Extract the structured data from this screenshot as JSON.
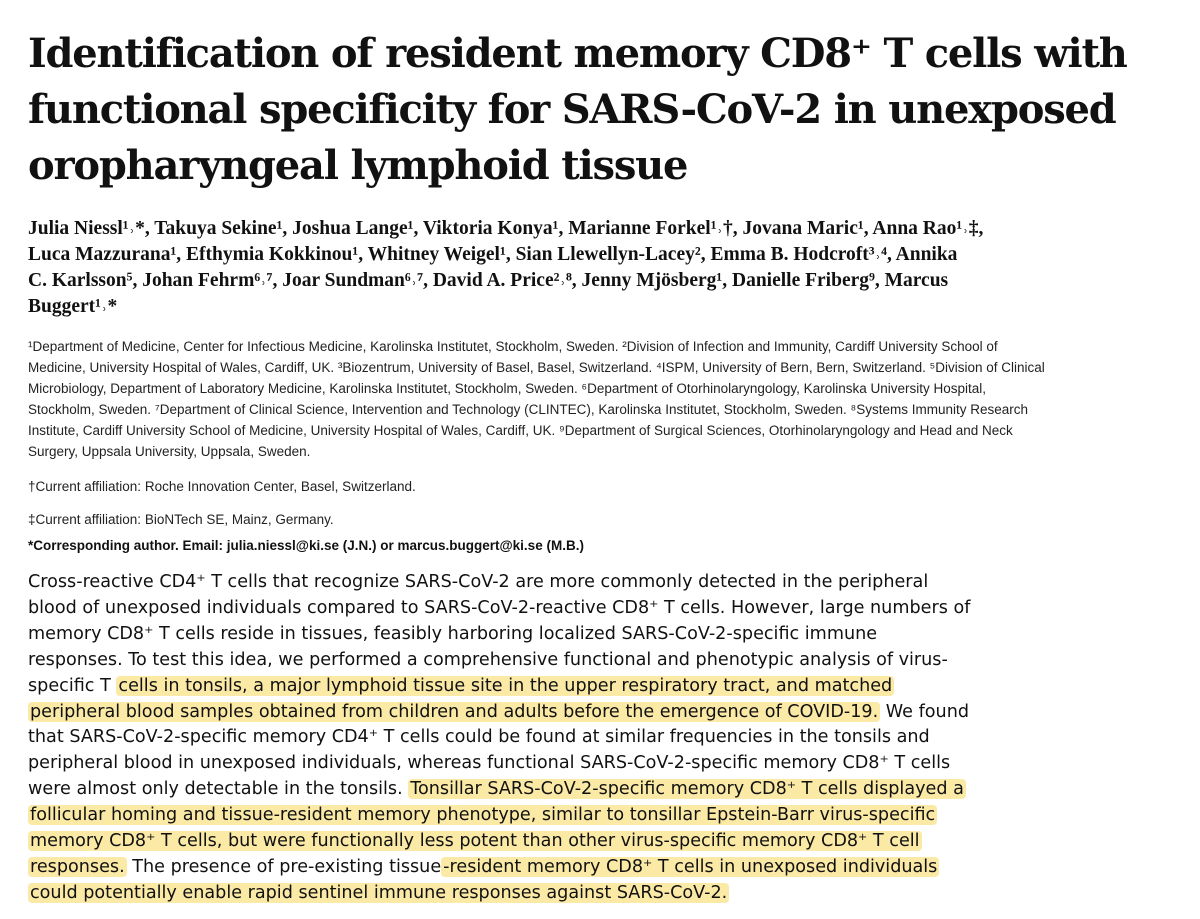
{
  "title": {
    "lines": [
      "Identification of resident memory CD8⁺ T cells with",
      "functional specificity for SARS-CoV-2 in unexposed",
      "oropharyngeal lymphoid tissue"
    ]
  },
  "authors": {
    "lines": [
      "Julia Niessl¹˒*, Takuya Sekine¹, Joshua Lange¹, Viktoria Konya¹, Marianne Forkel¹˒†, Jovana Maric¹, Anna Rao¹˒‡,",
      "Luca Mazzurana¹, Efthymia Kokkinou¹, Whitney Weigel¹, Sian Llewellyn-Lacey², Emma B. Hodcroft³˒⁴, Annika",
      "C. Karlsson⁵, Johan Fehrm⁶˒⁷, Joar Sundman⁶˒⁷, David A. Price²˒⁸, Jenny Mjösberg¹, Danielle Friberg⁹, Marcus",
      "Buggert¹˒*"
    ]
  },
  "affiliations": {
    "lines": [
      "¹Department of Medicine, Center for Infectious Medicine, Karolinska Institutet, Stockholm, Sweden. ²Division of Infection and Immunity, Cardiff University School of",
      "Medicine, University Hospital of Wales, Cardiff, UK. ³Biozentrum, University of Basel, Basel, Switzerland. ⁴ISPM, University of Bern, Bern, Switzerland. ⁵Division of Clinical",
      "Microbiology, Department of Laboratory Medicine, Karolinska Institutet, Stockholm, Sweden. ⁶Department of Otorhinolaryngology, Karolinska University Hospital,",
      "Stockholm, Sweden. ⁷Department of Clinical Science, Intervention and Technology (CLINTEC), Karolinska Institutet, Stockholm, Sweden. ⁸Systems Immunity Research",
      "Institute, Cardiff University School of Medicine, University Hospital of Wales, Cardiff, UK. ⁹Department of Surgical Sciences, Otorhinolaryngology and Head and Neck",
      "Surgery, Uppsala University, Uppsala, Sweden."
    ]
  },
  "notes": {
    "dagger": "†Current affiliation: Roche Innovation Center, Basel, Switzerland.",
    "double_dagger": "‡Current affiliation: BioNTech SE, Mainz, Germany.",
    "corresponding": "*Corresponding author. Email: julia.niessl@ki.se (J.N.) or marcus.buggert@ki.se (M.B.)"
  },
  "abstract": {
    "highlight_color": "#fbe9a6",
    "lines": [
      [
        {
          "t": "Cross-reactive CD4⁺ T cells that recognize SARS-CoV-2 are more commonly detected in the peripheral",
          "hl": false
        }
      ],
      [
        {
          "t": "blood of unexposed individuals compared to SARS-CoV-2-reactive CD8⁺ T cells. However, large numbers of",
          "hl": false
        }
      ],
      [
        {
          "t": "memory CD8⁺ T cells reside in tissues, feasibly harboring localized SARS-CoV-2-specific immune",
          "hl": false
        }
      ],
      [
        {
          "t": "responses. To test this idea, we performed a comprehensive functional and phenotypic analysis of virus-",
          "hl": false
        }
      ],
      [
        {
          "t": "specific T ",
          "hl": false
        },
        {
          "t": "cells in tonsils, a major lymphoid tissue site in the upper respiratory tract, and matched",
          "hl": true
        }
      ],
      [
        {
          "t": "peripheral blood samples obtained from children and adults before the emergence of COVID-19.",
          "hl": true
        },
        {
          "t": " We found",
          "hl": false
        }
      ],
      [
        {
          "t": "that SARS-CoV-2-specific memory CD4⁺ T cells could be found at similar frequencies in the tonsils and",
          "hl": false
        }
      ],
      [
        {
          "t": "peripheral blood in unexposed individuals, whereas functional SARS-CoV-2-specific memory CD8⁺ T cells",
          "hl": false
        }
      ],
      [
        {
          "t": "were almost only detectable in the tonsils. ",
          "hl": false
        },
        {
          "t": "Tonsillar SARS-CoV-2-specific memory CD8⁺ T cells displayed a",
          "hl": true
        }
      ],
      [
        {
          "t": "follicular homing and tissue-resident memory phenotype, similar to tonsillar Epstein-Barr virus-specific",
          "hl": true
        }
      ],
      [
        {
          "t": "memory CD8⁺ T cells, but were functionally less potent than other virus-specific memory CD8⁺ T cell",
          "hl": true
        }
      ],
      [
        {
          "t": "responses.",
          "hl": true
        },
        {
          "t": " The presence of pre-existing tissue",
          "hl": false
        },
        {
          "t": "-resident memory CD8⁺ T cells in unexposed individuals",
          "hl": true
        }
      ],
      [
        {
          "t": "could potentially enable rapid sentinel immune responses against SARS-CoV-2.",
          "hl": true
        }
      ]
    ]
  }
}
